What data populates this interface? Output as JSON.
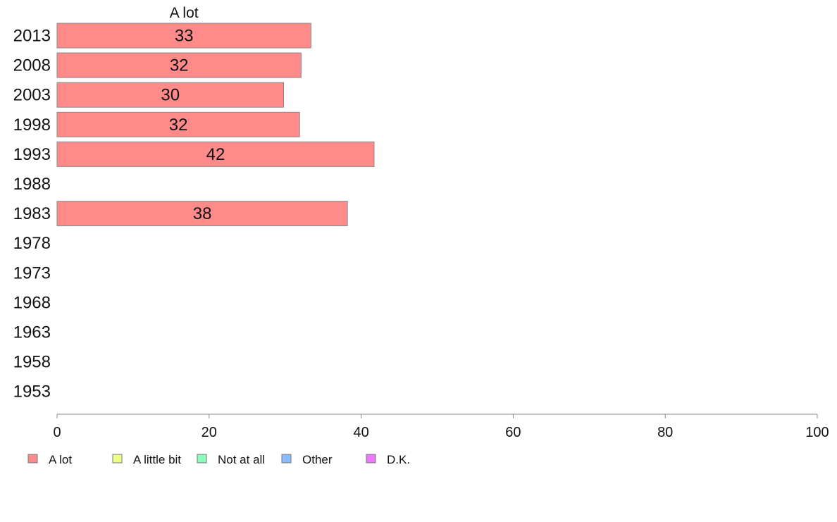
{
  "chart_data": {
    "type": "bar",
    "orientation": "horizontal",
    "stacked": true,
    "categories": [
      "2013",
      "2008",
      "2003",
      "1998",
      "1993",
      "1988",
      "1983",
      "1978",
      "1973",
      "1968",
      "1963",
      "1958",
      "1953"
    ],
    "series": [
      {
        "name": "A lot",
        "color": "#ff8a8a",
        "values": [
          33.4,
          32.1,
          29.8,
          31.9,
          41.7,
          null,
          38.2,
          null,
          null,
          null,
          null,
          null,
          null
        ]
      },
      {
        "name": "A little bit",
        "color": "#eeff88",
        "values": [
          null,
          null,
          null,
          null,
          null,
          null,
          null,
          null,
          null,
          null,
          null,
          null,
          null
        ]
      },
      {
        "name": "Not at all",
        "color": "#88ffbb",
        "values": [
          null,
          null,
          null,
          null,
          null,
          null,
          null,
          null,
          null,
          null,
          null,
          null,
          null
        ]
      },
      {
        "name": "Other",
        "color": "#88bbff",
        "values": [
          null,
          null,
          null,
          null,
          null,
          null,
          null,
          null,
          null,
          null,
          null,
          null,
          null
        ]
      },
      {
        "name": "D.K.",
        "color": "#ee77ff",
        "values": [
          null,
          null,
          null,
          null,
          null,
          null,
          null,
          null,
          null,
          null,
          null,
          null,
          null
        ]
      }
    ],
    "data_labels": [
      "33",
      "32",
      "30",
      "32",
      "42",
      "",
      "38",
      "",
      "",
      "",
      "",
      "",
      ""
    ],
    "series_title": "A lot",
    "xlim": [
      0,
      100
    ],
    "xticks": [
      0,
      20,
      40,
      60,
      80,
      100
    ],
    "grid": false,
    "legend_position": "bottom-left",
    "bar_stroke": "#888888",
    "axis_color": "#888888"
  }
}
